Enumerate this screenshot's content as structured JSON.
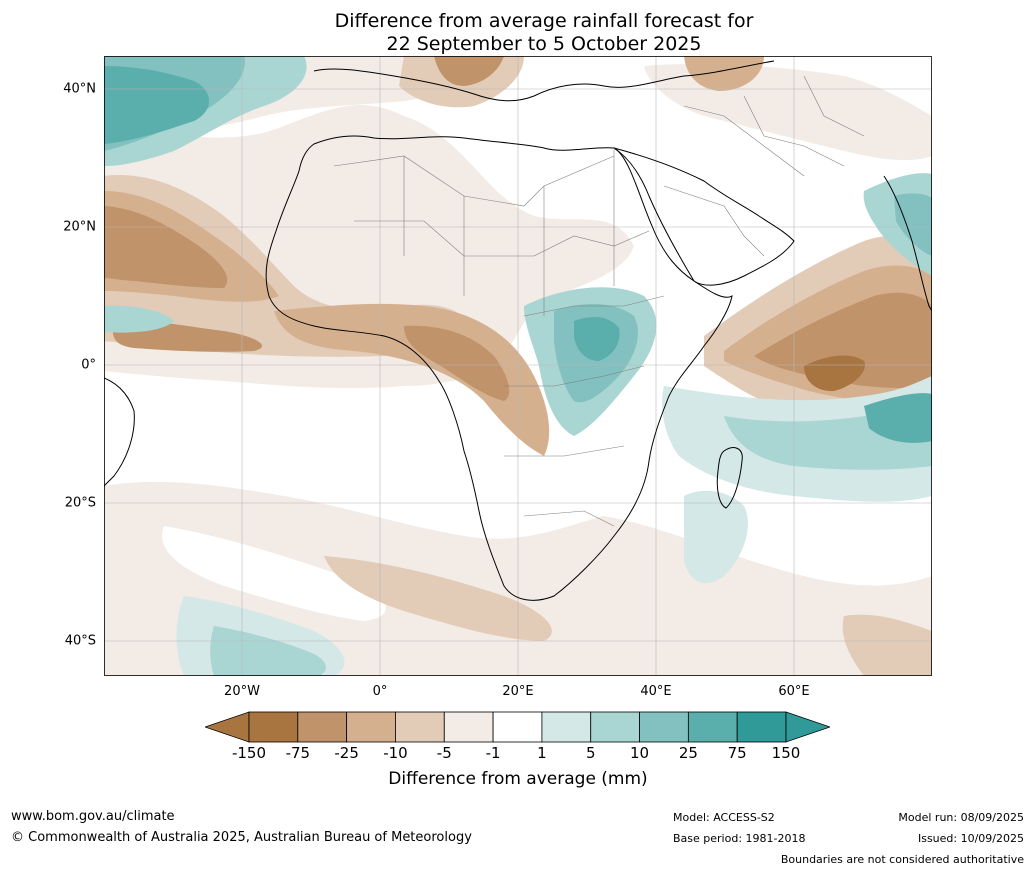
{
  "title": {
    "line1": "Difference from average rainfall forecast for",
    "line2": "22 September to 5 October 2025"
  },
  "map": {
    "lat_labels": [
      "40°N",
      "20°N",
      "0°",
      "20°S",
      "40°S"
    ],
    "lon_labels": [
      "20°W",
      "0°",
      "20°E",
      "40°E",
      "60°E"
    ],
    "colors": {
      "dry3": "#a87540",
      "dry2": "#c0936a",
      "dry1": "#d5b08f",
      "dry0": "#e2cbb7",
      "dryx": "#f3ebe5",
      "neutral": "#ffffff",
      "wet0": "#d3e8e7",
      "wet1": "#a9d5d3",
      "wet2": "#82c1bf",
      "wet3": "#5aaeac",
      "wet4": "#2f9a97"
    }
  },
  "colorbar": {
    "title": "Difference from average (mm)",
    "tick_labels": [
      "-150",
      "-75",
      "-25",
      "-10",
      "-5",
      "-1",
      "1",
      "5",
      "10",
      "25",
      "75",
      "150"
    ],
    "colors": [
      "#a87540",
      "#c0936a",
      "#d5b08f",
      "#e2cbb7",
      "#f3ebe5",
      "#ffffff",
      "#d3e8e7",
      "#a9d5d3",
      "#82c1bf",
      "#5aaeac",
      "#2f9a97"
    ],
    "extend_low_color": "#a87540",
    "extend_high_color": "#2f9a97"
  },
  "footer": {
    "url": "www.bom.gov.au/climate",
    "copyright": "© Commonwealth of Australia 2025, Australian Bureau of Meteorology",
    "model": "Model: ACCESS-S2",
    "base_period": "Base period: 1981-2018",
    "model_run": "Model run: 08/09/2025",
    "issued": "Issued: 10/09/2025",
    "disclaimer": "Boundaries are not considered authoritative"
  }
}
